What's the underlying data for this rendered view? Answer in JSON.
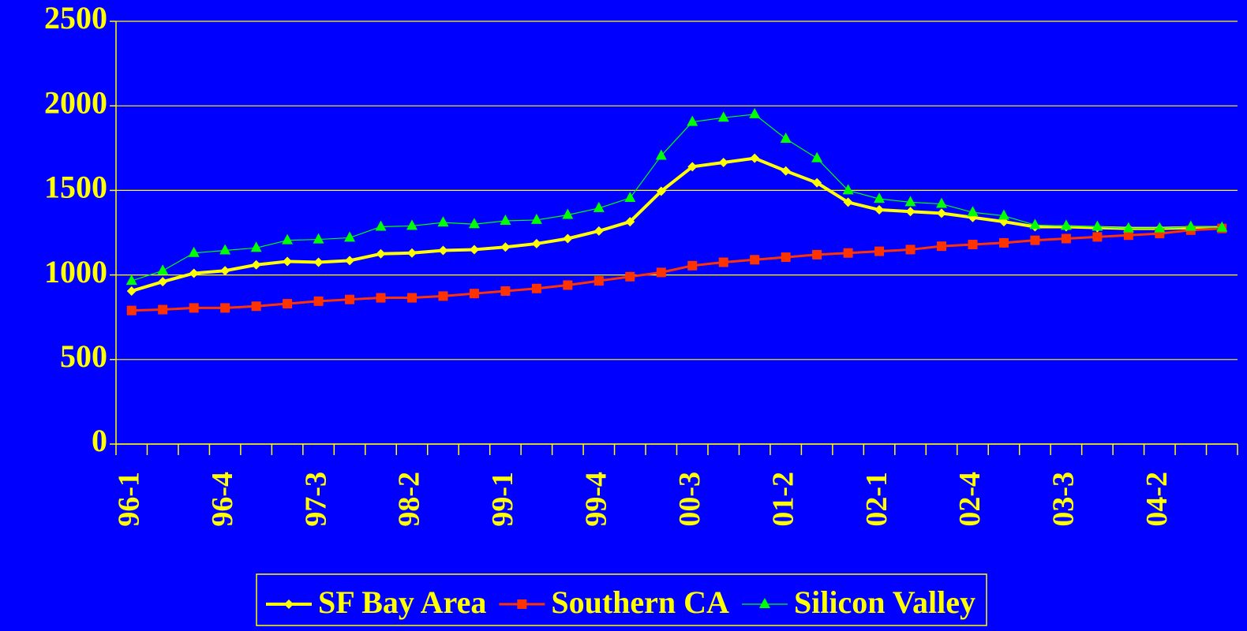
{
  "chart_data": {
    "type": "line",
    "categories": [
      "96-1",
      null,
      null,
      "96-4",
      null,
      null,
      "97-3",
      null,
      null,
      "98-2",
      null,
      null,
      "99-1",
      null,
      null,
      "99-4",
      null,
      null,
      "00-3",
      null,
      null,
      "01-2",
      null,
      null,
      "02-1",
      null,
      null,
      "02-4",
      null,
      null,
      "03-3",
      null,
      null,
      "04-2",
      null,
      null
    ],
    "series": [
      {
        "name": "SF Bay Area",
        "color": "#ffff00",
        "marker": "diamond",
        "values": [
          905,
          960,
          1010,
          1025,
          1060,
          1080,
          1075,
          1085,
          1125,
          1130,
          1145,
          1150,
          1165,
          1185,
          1215,
          1260,
          1315,
          1495,
          1640,
          1665,
          1690,
          1615,
          1545,
          1430,
          1385,
          1375,
          1365,
          1340,
          1315,
          1285,
          1285,
          1280,
          1275,
          1275,
          1280,
          1280
        ]
      },
      {
        "name": "Southern CA",
        "color": "#ff3300",
        "marker": "square",
        "values": [
          790,
          795,
          805,
          805,
          815,
          830,
          845,
          855,
          865,
          865,
          875,
          890,
          905,
          920,
          940,
          965,
          990,
          1015,
          1055,
          1075,
          1090,
          1105,
          1120,
          1130,
          1140,
          1150,
          1170,
          1180,
          1190,
          1205,
          1215,
          1225,
          1235,
          1245,
          1265,
          1275
        ]
      },
      {
        "name": "Silicon Valley",
        "color": "#00ff00",
        "marker": "triangle",
        "values": [
          965,
          1025,
          1130,
          1145,
          1160,
          1205,
          1210,
          1220,
          1285,
          1290,
          1310,
          1300,
          1320,
          1325,
          1355,
          1395,
          1455,
          1705,
          1905,
          1930,
          1950,
          1805,
          1690,
          1500,
          1450,
          1430,
          1420,
          1370,
          1350,
          1295,
          1290,
          1285,
          1275,
          1275,
          1285,
          1280
        ]
      }
    ],
    "ylim": [
      0,
      2500
    ],
    "yticks": [
      0,
      500,
      1000,
      1500,
      2000,
      2500
    ],
    "grid": true,
    "legend": "bottom"
  }
}
